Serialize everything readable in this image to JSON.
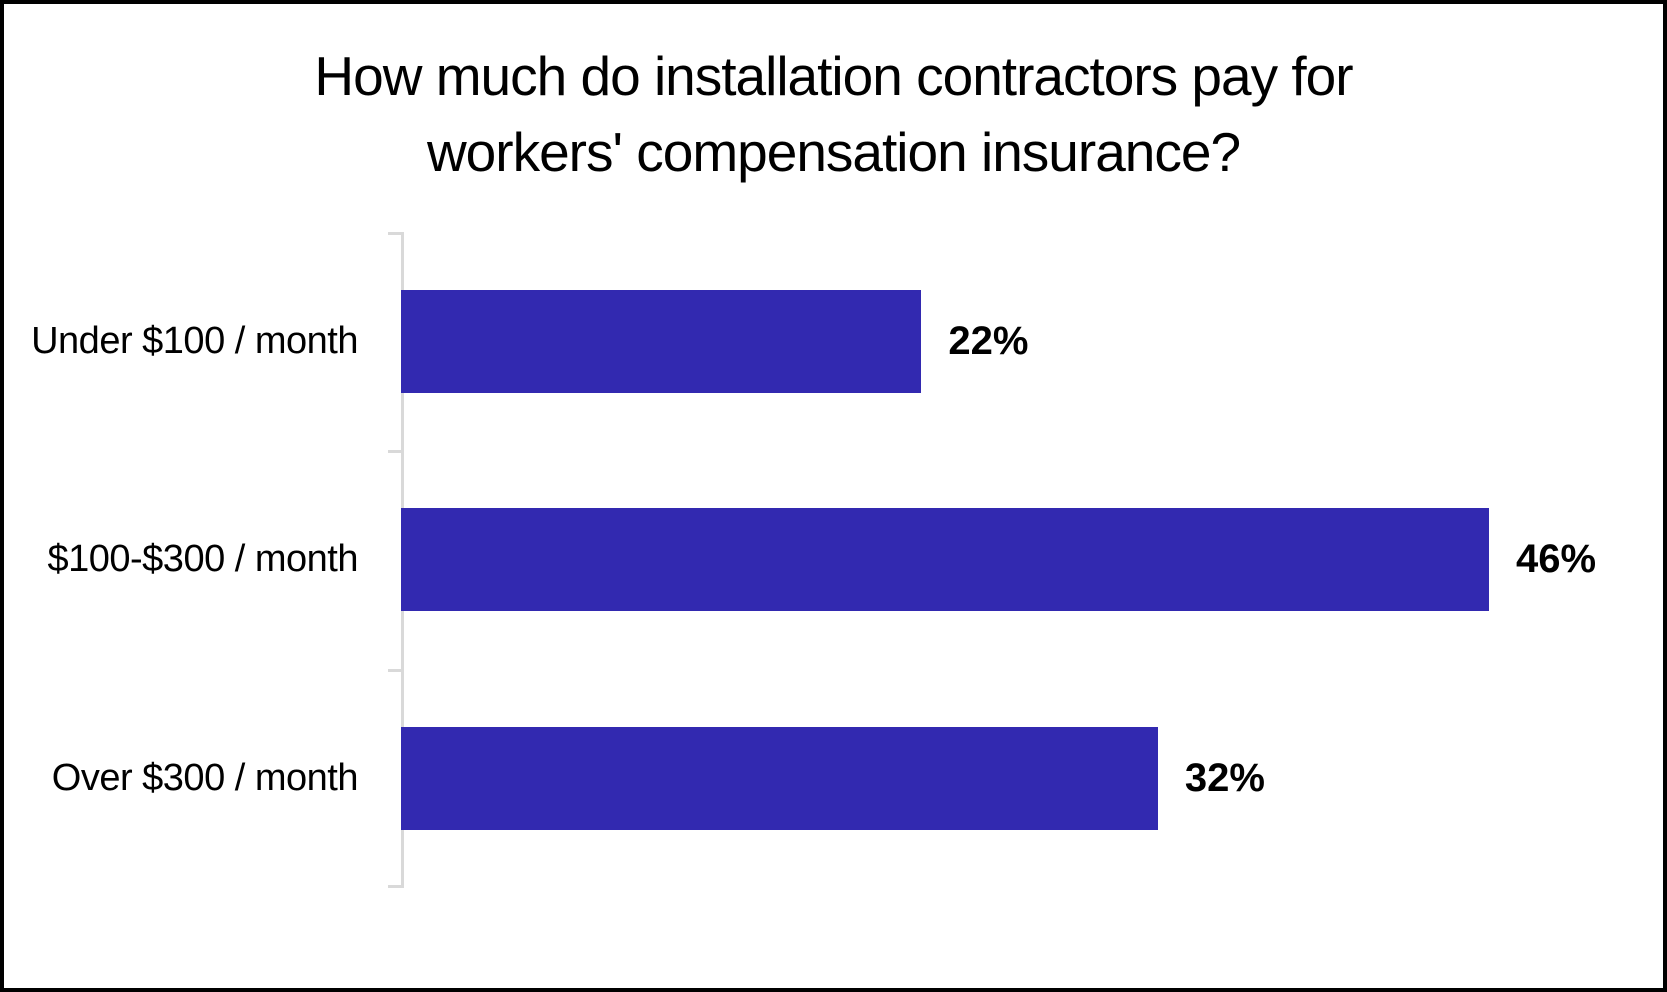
{
  "chart_data": {
    "type": "bar",
    "orientation": "horizontal",
    "title": "How much do installation contractors pay for workers' compensation insurance?",
    "title_lines": [
      "How much do installation contractors pay for",
      "workers' compensation insurance?"
    ],
    "categories": [
      "Under $100 / month",
      "$100-$300 / month",
      "Over $300 / month"
    ],
    "values": [
      22,
      46,
      32
    ],
    "value_labels": [
      "22%",
      "46%",
      "32%"
    ],
    "xlabel": "",
    "ylabel": "",
    "xlim": [
      0,
      46
    ],
    "grid": false,
    "legend": false,
    "data_labels_position": "outside-end"
  },
  "colors": {
    "bar_fill": "#3229B0",
    "axis_line": "#D9D9D9",
    "text": "#000000",
    "frame_border": "#000000",
    "background": "#FFFFFF"
  }
}
